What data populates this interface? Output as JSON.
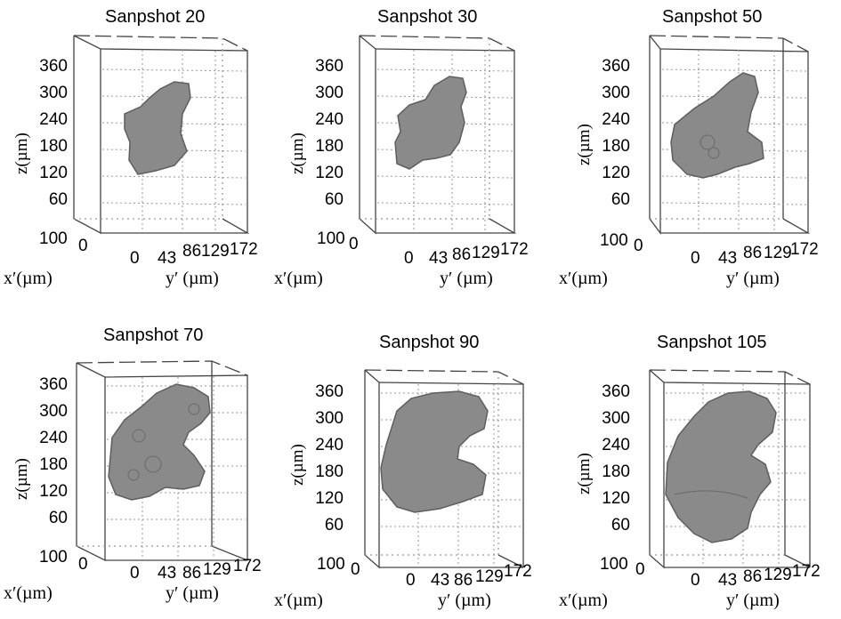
{
  "panels": [
    {
      "title": "Sanpshot 20"
    },
    {
      "title": "Sanpshot 30"
    },
    {
      "title": "Sanpshot 50"
    },
    {
      "title": "Sanpshot 70"
    },
    {
      "title": "Sanpshot 90"
    },
    {
      "title": "Sanpshot 105"
    }
  ],
  "axes": {
    "z_label": "z(µm)",
    "z_ticks": [
      "360",
      "300",
      "240",
      "180",
      "120",
      "60"
    ],
    "x_label": "x′(µm)",
    "x_ticks": [
      "100",
      "0"
    ],
    "y_label": "y′ (µm)",
    "y_ticks": [
      "0",
      "43",
      "86",
      "129",
      "172"
    ]
  },
  "colors": {
    "blob": "#8a8a8a",
    "blob_edge": "#5e5e5e",
    "frame": "#444444",
    "grid": "#9a9a9a"
  }
}
